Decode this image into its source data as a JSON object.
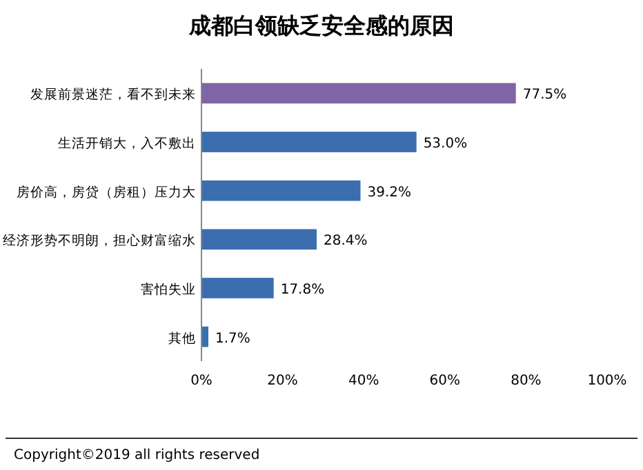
{
  "chart_data": {
    "type": "bar",
    "orientation": "horizontal",
    "title": "成都白领缺乏安全感的原因",
    "categories": [
      "发展前景迷茫，看不到未来",
      "生活开销大，入不敷出",
      "房价高，房贷（房租）压力大",
      "经济形势不明朗，担心财富缩水",
      "害怕失业",
      "其他"
    ],
    "values": [
      77.5,
      53.0,
      39.2,
      28.4,
      17.8,
      1.7
    ],
    "colors": [
      "#7f64a6",
      "#3a6eae",
      "#3a6eae",
      "#3a6eae",
      "#3a6eae",
      "#3a6eae"
    ],
    "value_labels": [
      "77.5%",
      "53.0%",
      "39.2%",
      "28.4%",
      "17.8%",
      "1.7%"
    ],
    "xlim": [
      0,
      100
    ],
    "xticks": [
      {
        "value": 0,
        "label": "0%"
      },
      {
        "value": 20,
        "label": "20%"
      },
      {
        "value": 40,
        "label": "40%"
      },
      {
        "value": 60,
        "label": "60%"
      },
      {
        "value": 80,
        "label": "80%"
      },
      {
        "value": 100,
        "label": "100%"
      }
    ],
    "grid": false,
    "annotations": [
      "Copyright©2019 all rights reserved"
    ]
  }
}
